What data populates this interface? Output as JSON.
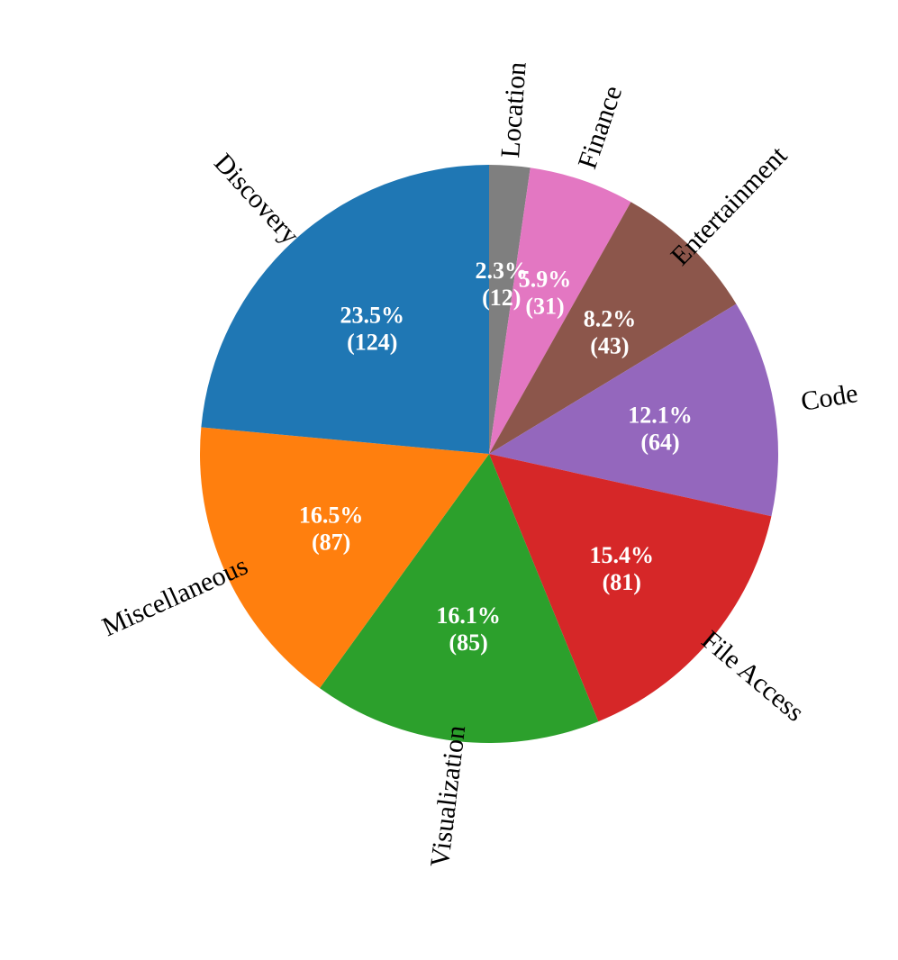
{
  "chart_data": {
    "type": "pie",
    "title": "",
    "start": "top",
    "direction": "clockwise",
    "slices": [
      {
        "label": "Location",
        "value": 12,
        "percent": "2.3%",
        "count": "(12)",
        "color": "#7f7f7f"
      },
      {
        "label": "Finance",
        "value": 31,
        "percent": "5.9%",
        "count": "(31)",
        "color": "#e377c2"
      },
      {
        "label": "Entertainment",
        "value": 43,
        "percent": "8.2%",
        "count": "(43)",
        "color": "#8c564b"
      },
      {
        "label": "Code",
        "value": 64,
        "percent": "12.1%",
        "count": "(64)",
        "color": "#9467bd"
      },
      {
        "label": "File Access",
        "value": 81,
        "percent": "15.4%",
        "count": "(81)",
        "color": "#d62728"
      },
      {
        "label": "Visualization",
        "value": 85,
        "percent": "16.1%",
        "count": "(85)",
        "color": "#2ca02c"
      },
      {
        "label": "Miscellaneous",
        "value": 87,
        "percent": "16.5%",
        "count": "(87)",
        "color": "#ff7f0e"
      },
      {
        "label": "Discovery",
        "value": 124,
        "percent": "23.5%",
        "count": "(124)",
        "color": "#1f77b4"
      }
    ]
  }
}
